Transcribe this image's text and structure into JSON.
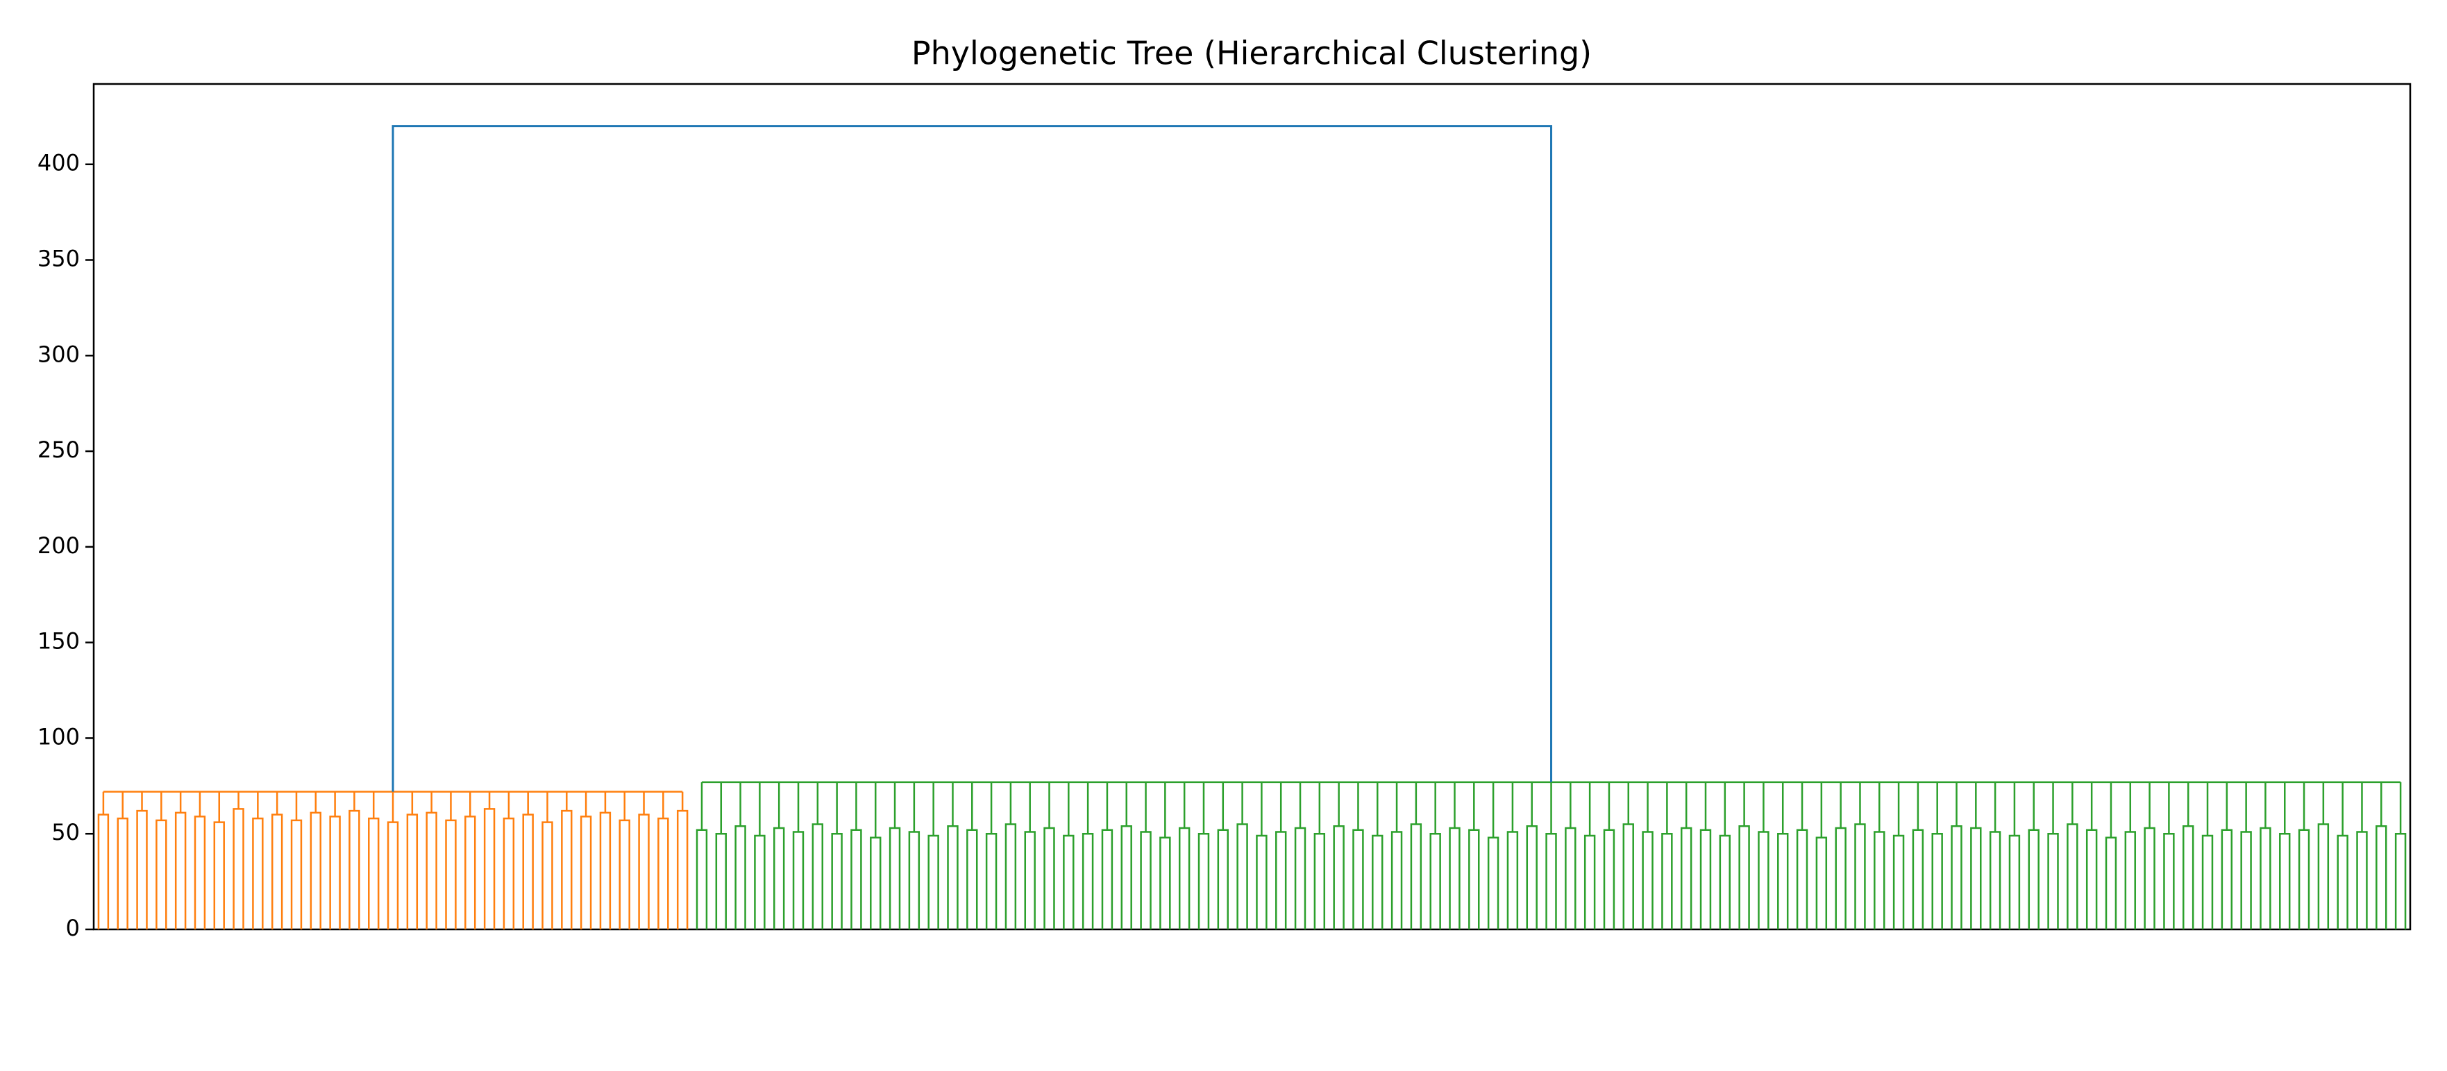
{
  "chart_data": {
    "type": "dendrogram",
    "title": "Phylogenetic Tree (Hierarchical Clustering)",
    "ylim": [
      0,
      442
    ],
    "yticks": [
      0,
      50,
      100,
      150,
      200,
      250,
      300,
      350,
      400
    ],
    "root_height": 420,
    "root_color": "#1f77b4",
    "clusters": [
      {
        "color": "#ff7f0e",
        "height": 72,
        "merge_heights": [
          60,
          58,
          62,
          57,
          61,
          59,
          56,
          63,
          58,
          60,
          57,
          61,
          59,
          62,
          58,
          56,
          60,
          61,
          57,
          59,
          63,
          58,
          60,
          56,
          62,
          59,
          61,
          57,
          60,
          58,
          62
        ]
      },
      {
        "color": "#2ca02c",
        "height": 77,
        "merge_heights": [
          52,
          50,
          54,
          49,
          53,
          51,
          55,
          50,
          52,
          48,
          53,
          51,
          49,
          54,
          52,
          50,
          55,
          51,
          53,
          49,
          50,
          52,
          54,
          51,
          48,
          53,
          50,
          52,
          55,
          49,
          51,
          53,
          50,
          54,
          52,
          49,
          51,
          55,
          50,
          53,
          52,
          48,
          51,
          54,
          50,
          53,
          49,
          52,
          55,
          51,
          50,
          53,
          52,
          49,
          54,
          51,
          50,
          52,
          48,
          53,
          55,
          51,
          49,
          52,
          50,
          54,
          53,
          51,
          49,
          52,
          50,
          55,
          52,
          48,
          51,
          53,
          50,
          54,
          49,
          52,
          51,
          53,
          50,
          52,
          55,
          49,
          51,
          54,
          50
        ]
      }
    ]
  }
}
